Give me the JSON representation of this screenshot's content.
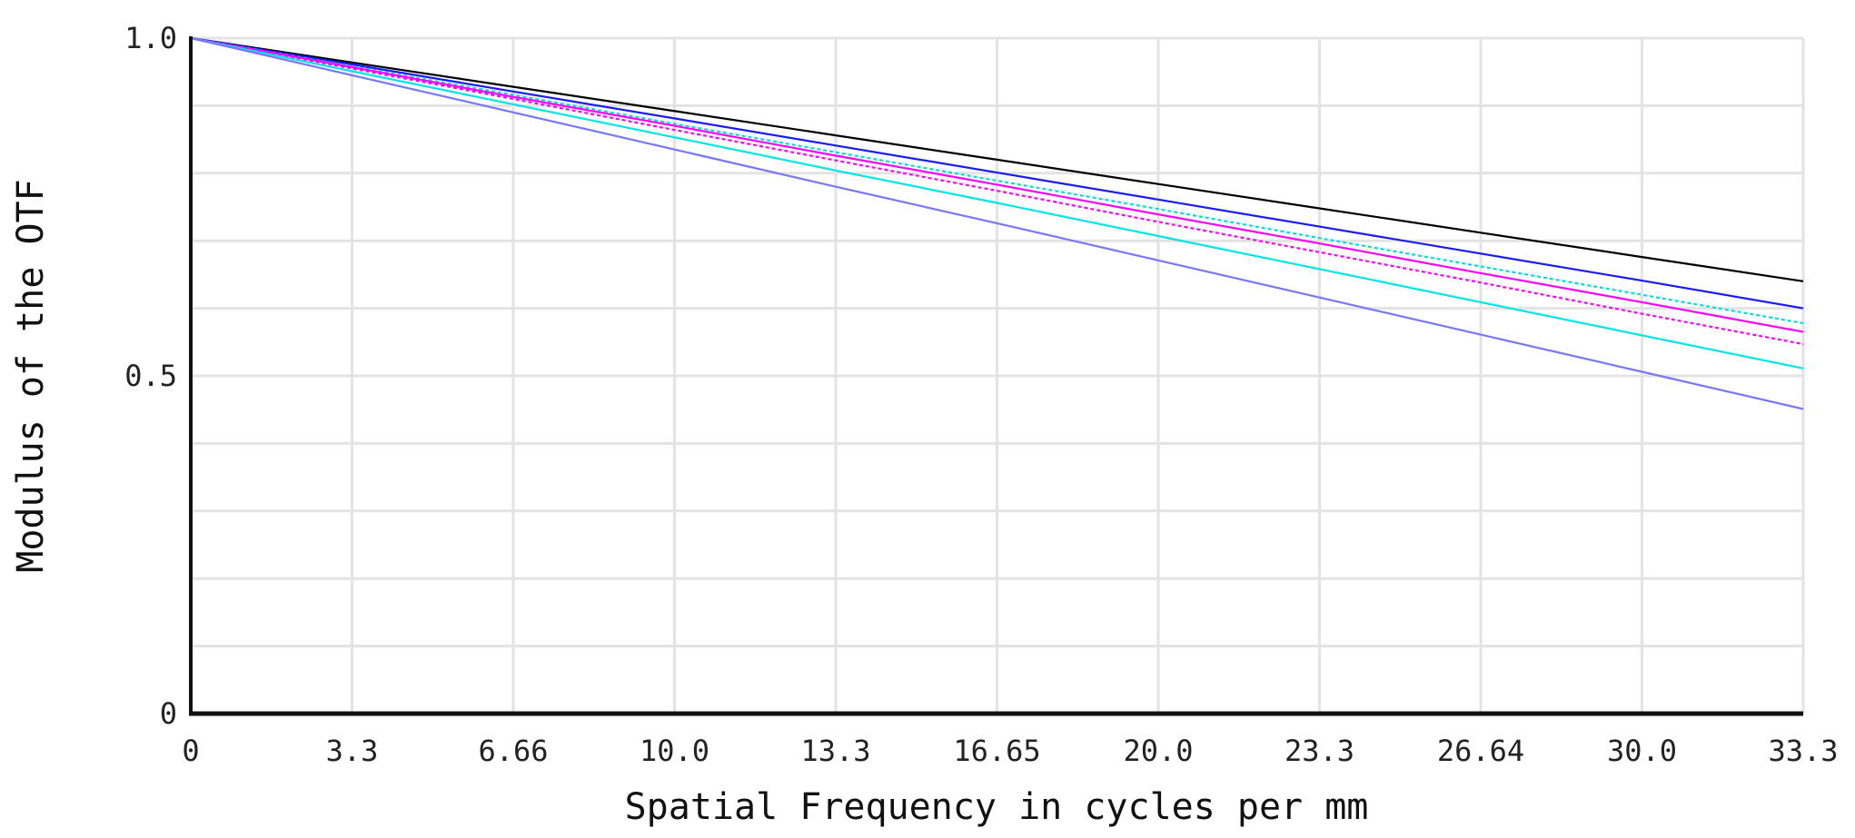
{
  "chart_data": {
    "type": "line",
    "title": "",
    "xlabel": "Spatial Frequency in cycles per mm",
    "ylabel": "Modulus of the OTF",
    "xlim": [
      0,
      33.3
    ],
    "ylim": [
      0,
      1.0
    ],
    "x_ticks": [
      "0",
      "3.3",
      "6.66",
      "10.0",
      "13.3",
      "16.65",
      "20.0",
      "23.3",
      "26.64",
      "30.0",
      "33.3"
    ],
    "y_ticks": [
      "0",
      "0.5",
      "1.0"
    ],
    "grid": true,
    "x": [
      0,
      3.33,
      6.66,
      10.0,
      13.32,
      16.65,
      19.98,
      23.31,
      26.64,
      29.97,
      33.3
    ],
    "series": [
      {
        "color": "#000000",
        "dashed": false,
        "values": [
          1.0,
          0.964,
          0.928,
          0.892,
          0.856,
          0.82,
          0.784,
          0.748,
          0.712,
          0.676,
          0.64
        ]
      },
      {
        "color": "#1a1aff",
        "dashed": false,
        "values": [
          1.0,
          0.961,
          0.921,
          0.881,
          0.841,
          0.801,
          0.761,
          0.721,
          0.681,
          0.641,
          0.6
        ]
      },
      {
        "color": "#00dddd",
        "dashed": true,
        "values": [
          1.0,
          0.958,
          0.916,
          0.873,
          0.831,
          0.789,
          0.747,
          0.704,
          0.662,
          0.62,
          0.578
        ]
      },
      {
        "color": "#ff00ff",
        "dashed": false,
        "values": [
          1.0,
          0.957,
          0.913,
          0.87,
          0.826,
          0.783,
          0.739,
          0.696,
          0.652,
          0.609,
          0.565
        ]
      },
      {
        "color": "#ff00ff",
        "dashed": true,
        "values": [
          1.0,
          0.955,
          0.91,
          0.864,
          0.819,
          0.774,
          0.728,
          0.683,
          0.638,
          0.592,
          0.547
        ]
      },
      {
        "color": "#00e5e5",
        "dashed": false,
        "values": [
          1.0,
          0.951,
          0.902,
          0.853,
          0.804,
          0.756,
          0.707,
          0.658,
          0.609,
          0.56,
          0.511
        ]
      },
      {
        "color": "#7777ff",
        "dashed": false,
        "values": [
          1.0,
          0.945,
          0.89,
          0.835,
          0.78,
          0.726,
          0.671,
          0.616,
          0.561,
          0.506,
          0.451
        ]
      }
    ]
  }
}
